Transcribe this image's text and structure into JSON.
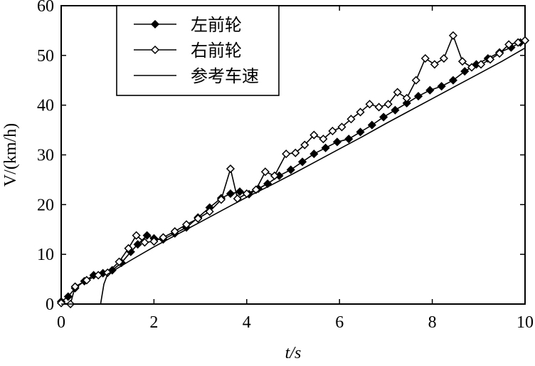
{
  "chart_data": {
    "type": "line",
    "xlabel": "t/s",
    "ylabel": "V/(km/h)",
    "xlim": [
      0,
      10
    ],
    "ylim": [
      0,
      60
    ],
    "xticks": [
      0,
      2,
      4,
      6,
      8,
      10
    ],
    "yticks": [
      0,
      10,
      20,
      30,
      40,
      50,
      60
    ],
    "legend_position": "top-left",
    "grid": false,
    "series": [
      {
        "name": "左前轮",
        "marker": "filled-diamond",
        "color": "#000000",
        "x": [
          0,
          0.15,
          0.3,
          0.5,
          0.7,
          0.9,
          1.1,
          1.3,
          1.5,
          1.65,
          1.85,
          2.0,
          2.2,
          2.45,
          2.7,
          2.95,
          3.2,
          3.45,
          3.65,
          3.85,
          4.05,
          4.25,
          4.45,
          4.7,
          4.95,
          5.2,
          5.45,
          5.7,
          5.95,
          6.2,
          6.45,
          6.7,
          6.95,
          7.2,
          7.45,
          7.7,
          7.95,
          8.2,
          8.45,
          8.7,
          8.95,
          9.2,
          9.45,
          9.7,
          9.9,
          10.0
        ],
        "y": [
          0.5,
          1.5,
          3.2,
          4.6,
          5.8,
          6.2,
          6.8,
          8.3,
          10.5,
          12.0,
          13.8,
          13.2,
          13.0,
          14.2,
          15.4,
          17.4,
          19.4,
          21.3,
          22.2,
          22.6,
          22.1,
          23.2,
          24.2,
          25.8,
          27.0,
          28.6,
          30.2,
          31.4,
          32.6,
          33.2,
          34.6,
          36.0,
          37.6,
          39.0,
          40.4,
          41.8,
          43.0,
          43.8,
          45.0,
          46.8,
          48.2,
          49.4,
          50.6,
          51.6,
          52.6,
          53.0
        ]
      },
      {
        "name": "右前轮",
        "marker": "hollow-diamond",
        "color": "#000000",
        "x": [
          0,
          0.2,
          0.3,
          0.55,
          0.8,
          1.0,
          1.25,
          1.45,
          1.62,
          1.8,
          2.0,
          2.2,
          2.45,
          2.7,
          2.95,
          3.2,
          3.45,
          3.65,
          3.8,
          4.0,
          4.2,
          4.4,
          4.6,
          4.85,
          5.05,
          5.25,
          5.45,
          5.65,
          5.85,
          6.05,
          6.25,
          6.45,
          6.65,
          6.85,
          7.05,
          7.25,
          7.45,
          7.65,
          7.85,
          8.05,
          8.25,
          8.45,
          8.65,
          8.85,
          9.05,
          9.25,
          9.45,
          9.65,
          9.85,
          10.0
        ],
        "y": [
          0.2,
          0.0,
          3.5,
          4.8,
          5.8,
          6.3,
          8.5,
          11.2,
          13.8,
          12.4,
          12.6,
          13.4,
          14.6,
          16.0,
          17.2,
          18.6,
          21.0,
          27.2,
          21.2,
          22.2,
          23.0,
          26.6,
          25.8,
          30.2,
          30.4,
          32.0,
          34.0,
          33.2,
          34.8,
          35.6,
          37.2,
          38.6,
          40.2,
          39.6,
          40.2,
          42.6,
          41.4,
          45.0,
          49.4,
          48.2,
          49.4,
          54.0,
          48.8,
          47.6,
          48.2,
          49.2,
          50.4,
          52.2,
          52.6,
          53.0
        ]
      },
      {
        "name": "参考车速",
        "marker": "none",
        "color": "#000000",
        "x": [
          0,
          0.2,
          0.45,
          0.75,
          0.85,
          0.92,
          1.0,
          1.5,
          2.0,
          2.5,
          3.0,
          3.5,
          4.0,
          4.5,
          5.0,
          5.5,
          6.0,
          6.5,
          7.0,
          7.5,
          8.0,
          8.5,
          9.0,
          9.5,
          10.0
        ],
        "y": [
          0,
          0,
          0,
          0,
          0,
          4.0,
          6.0,
          8.8,
          11.5,
          14.0,
          16.5,
          19.0,
          21.5,
          23.8,
          26.2,
          28.7,
          31.2,
          33.7,
          36.3,
          38.8,
          41.3,
          43.8,
          46.3,
          48.8,
          51.5
        ]
      }
    ]
  }
}
